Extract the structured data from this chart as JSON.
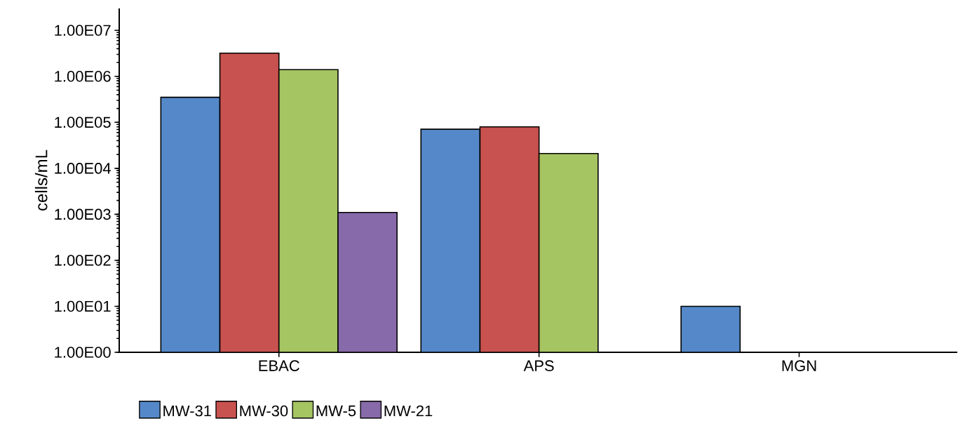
{
  "chart_data": {
    "type": "bar",
    "ylabel": "cells/mL",
    "log": true,
    "legend": "bottom left",
    "categories": [
      "EBAC",
      "APS",
      "MGN"
    ],
    "ylim": [
      1,
      30000000
    ],
    "yticks": [
      {
        "value": 1,
        "label": "1.00E00"
      },
      {
        "value": 10,
        "label": "1.00E01"
      },
      {
        "value": 100,
        "label": "1.00E02"
      },
      {
        "value": 1000,
        "label": "1.00E03"
      },
      {
        "value": 10000,
        "label": "1.00E04"
      },
      {
        "value": 100000,
        "label": "1.00E05"
      },
      {
        "value": 1000000,
        "label": "1.00E06"
      },
      {
        "value": 10000000,
        "label": "1.00E07"
      }
    ],
    "series": [
      {
        "name": "MW-31",
        "color": "#5588c8",
        "values": [
          350000,
          71000,
          10
        ]
      },
      {
        "name": "MW-30",
        "color": "#c8524f",
        "values": [
          3200000,
          80000,
          null
        ]
      },
      {
        "name": "MW-5",
        "color": "#a5c462",
        "values": [
          1400000,
          21000,
          null
        ]
      },
      {
        "name": "MW-21",
        "color": "#876aa9",
        "values": [
          1100,
          null,
          null
        ]
      }
    ]
  }
}
